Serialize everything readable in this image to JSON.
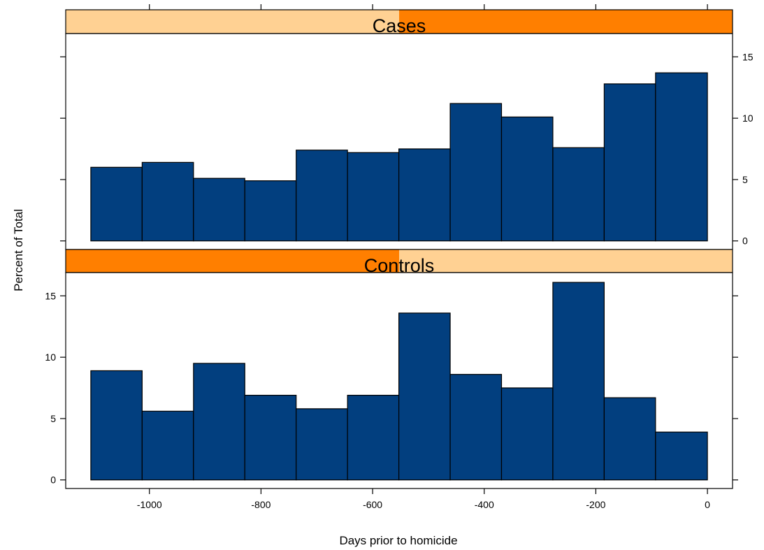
{
  "chart_data": {
    "type": "bar",
    "xlabel": "Days prior to homicide",
    "ylabel": "Percent of Total",
    "xlim": [
      -1150,
      45
    ],
    "ylim": [
      -0.7,
      16.9
    ],
    "x_ticks": [
      -1000,
      -800,
      -600,
      -400,
      -200,
      0
    ],
    "x_tick_labels": [
      "-1000",
      "-800",
      "-600",
      "-400",
      "-200",
      "0"
    ],
    "y_ticks": [
      0,
      5,
      10,
      15
    ],
    "y_tick_labels": [
      "0",
      "5",
      "10",
      "15"
    ],
    "bin_edges": [
      -1105,
      -1013,
      -921,
      -829,
      -737,
      -645,
      -553,
      -461,
      -369,
      -277,
      -185,
      -93,
      0
    ],
    "bar_color": "#023F7F",
    "strip_colors": {
      "light": "#FFD193",
      "dark": "#FF7F00"
    },
    "panels": [
      {
        "name": "Cases",
        "strip_fraction": 0.5,
        "values": [
          6.0,
          6.4,
          5.1,
          4.9,
          7.4,
          7.2,
          7.5,
          11.2,
          10.1,
          7.6,
          12.8,
          13.7
        ]
      },
      {
        "name": "Controls",
        "strip_fraction": 0.5,
        "values": [
          8.9,
          5.6,
          9.5,
          6.9,
          5.8,
          6.9,
          13.6,
          8.6,
          7.5,
          16.1,
          6.7,
          3.9
        ]
      }
    ]
  }
}
